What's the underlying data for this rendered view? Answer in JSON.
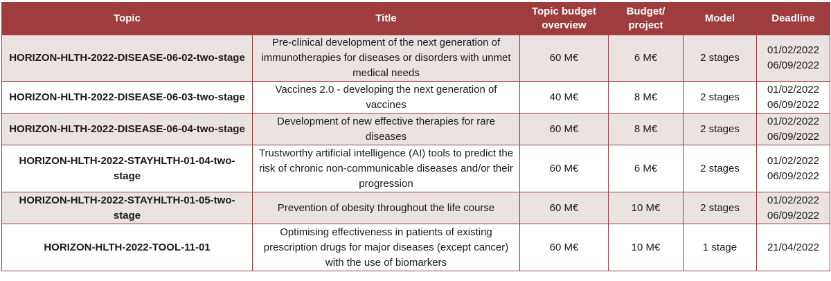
{
  "headers": {
    "topic": "Topic",
    "title": "Title",
    "budget_overview": "Topic budget overview",
    "budget_project": "Budget/ project",
    "model": "Model",
    "deadline": "Deadline"
  },
  "rows": [
    {
      "topic": "HORIZON-HLTH-2022-DISEASE-06-02-two-stage",
      "title": "Pre-clinical development of the next generation of immunotherapies for diseases or disorders with unmet medical needs",
      "budget": "60 M€",
      "per_project": "6 M€",
      "model": "2 stages",
      "deadline_1": "01/02/2022",
      "deadline_2": "06/09/2022"
    },
    {
      "topic": "HORIZON-HLTH-2022-DISEASE-06-03-two-stage",
      "title": "Vaccines 2.0 - developing the next generation of vaccines",
      "budget": "40 M€",
      "per_project": "8 M€",
      "model": "2 stages",
      "deadline_1": "01/02/2022",
      "deadline_2": "06/09/2022"
    },
    {
      "topic": "HORIZON-HLTH-2022-DISEASE-06-04-two-stage",
      "title": "Development of new effective therapies for rare diseases",
      "budget": "60 M€",
      "per_project": "8 M€",
      "model": "2 stages",
      "deadline_1": "01/02/2022",
      "deadline_2": "06/09/2022"
    },
    {
      "topic": "HORIZON-HLTH-2022-STAYHLTH-01-04-two-stage",
      "title": "Trustworthy artificial intelligence (AI) tools to predict the risk of chronic non-communicable diseases and/or their progression",
      "budget": "60 M€",
      "per_project": "6 M€",
      "model": "2 stages",
      "deadline_1": "01/02/2022",
      "deadline_2": "06/09/2022"
    },
    {
      "topic": "HORIZON-HLTH-2022-STAYHLTH-01-05-two-stage",
      "title": "Prevention of obesity throughout the life course",
      "budget": "60 M€",
      "per_project": "10 M€",
      "model": "2 stages",
      "deadline_1": "01/02/2022",
      "deadline_2": "06/09/2022"
    },
    {
      "topic": "HORIZON-HLTH-2022-TOOL-11-01",
      "title": "Optimising effectiveness in patients of existing prescription drugs for major diseases (except cancer) with the use of biomarkers",
      "budget": "60 M€",
      "per_project": "10 M€",
      "model": "1 stage",
      "deadline_1": "21/04/2022",
      "deadline_2": ""
    }
  ]
}
